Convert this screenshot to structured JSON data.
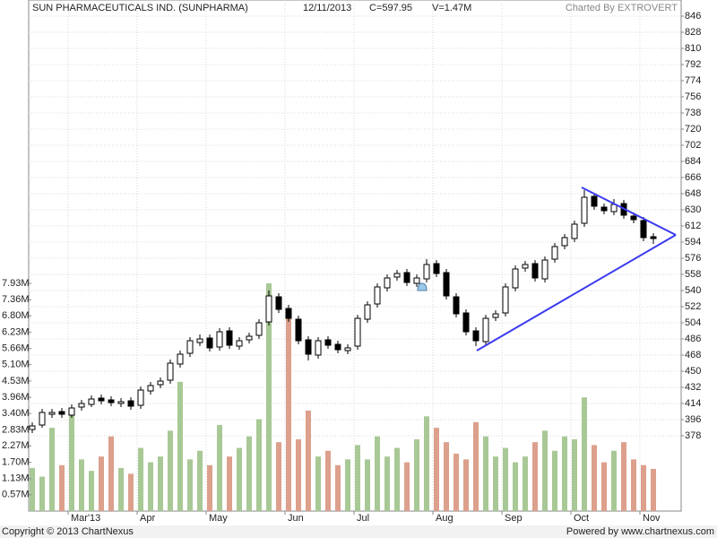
{
  "chart_data": {
    "type": "candlestick",
    "title": "SUN PHARMACEUTICALS IND. (SUNPHARMA)",
    "date": "12/11/2013",
    "close_label": "C=597.95",
    "volume_label": "V=1.47M",
    "credit": "Charted By EXTROVERT",
    "copyright": "Copyright © 2013 ChartNexus",
    "powered": "Powered by www.chartnexus.com",
    "categories": [
      null,
      null,
      null,
      null,
      "Mar'13",
      null,
      null,
      null,
      null,
      null,
      null,
      "Apr",
      null,
      null,
      null,
      null,
      null,
      null,
      "May",
      null,
      null,
      null,
      null,
      null,
      null,
      null,
      "Jun",
      null,
      null,
      null,
      null,
      null,
      null,
      "Jul",
      null,
      null,
      null,
      null,
      null,
      null,
      null,
      "Aug",
      null,
      null,
      null,
      null,
      null,
      null,
      "Sep",
      null,
      null,
      null,
      null,
      null,
      null,
      "Oct",
      null,
      null,
      null,
      null,
      null,
      null,
      "Nov",
      null
    ],
    "ohlc": [
      [
        385,
        393,
        381,
        389
      ],
      [
        390,
        408,
        387,
        404
      ],
      [
        402,
        408,
        398,
        404
      ],
      [
        405,
        409,
        398,
        402
      ],
      [
        401,
        413,
        398,
        409
      ],
      [
        410,
        418,
        406,
        414
      ],
      [
        413,
        423,
        410,
        419
      ],
      [
        420,
        424,
        413,
        417
      ],
      [
        418,
        422,
        411,
        415
      ],
      [
        414,
        420,
        410,
        416
      ],
      [
        417,
        421,
        407,
        411
      ],
      [
        412,
        433,
        408,
        429
      ],
      [
        428,
        438,
        424,
        434
      ],
      [
        435,
        443,
        431,
        439
      ],
      [
        440,
        463,
        436,
        459
      ],
      [
        458,
        473,
        454,
        469
      ],
      [
        470,
        488,
        466,
        484
      ],
      [
        482,
        491,
        478,
        486
      ],
      [
        487,
        491,
        472,
        476
      ],
      [
        477,
        498,
        473,
        494
      ],
      [
        495,
        499,
        475,
        479
      ],
      [
        478,
        488,
        474,
        484
      ],
      [
        485,
        493,
        481,
        489
      ],
      [
        490,
        508,
        486,
        504
      ],
      [
        505,
        540,
        501,
        534
      ],
      [
        533,
        537,
        515,
        519
      ],
      [
        520,
        524,
        505,
        509
      ],
      [
        508,
        512,
        480,
        484
      ],
      [
        485,
        489,
        462,
        469
      ],
      [
        468,
        488,
        464,
        484
      ],
      [
        485,
        489,
        475,
        479
      ],
      [
        480,
        484,
        470,
        474
      ],
      [
        473,
        480,
        469,
        476
      ],
      [
        478,
        513,
        474,
        509
      ],
      [
        508,
        528,
        504,
        524
      ],
      [
        525,
        548,
        521,
        544
      ],
      [
        543,
        558,
        539,
        554
      ],
      [
        555,
        563,
        551,
        559
      ],
      [
        560,
        564,
        545,
        549
      ],
      [
        548,
        558,
        544,
        554
      ],
      [
        553,
        575,
        549,
        569
      ],
      [
        570,
        574,
        555,
        559
      ],
      [
        560,
        564,
        530,
        534
      ],
      [
        533,
        537,
        510,
        514
      ],
      [
        515,
        519,
        490,
        494
      ],
      [
        495,
        499,
        478,
        484
      ],
      [
        483,
        513,
        479,
        509
      ],
      [
        510,
        518,
        506,
        514
      ],
      [
        515,
        548,
        511,
        544
      ],
      [
        543,
        568,
        539,
        564
      ],
      [
        565,
        573,
        561,
        569
      ],
      [
        570,
        574,
        550,
        554
      ],
      [
        553,
        578,
        549,
        574
      ],
      [
        575,
        593,
        571,
        589
      ],
      [
        590,
        603,
        586,
        599
      ],
      [
        598,
        618,
        594,
        614
      ],
      [
        615,
        652,
        611,
        644
      ],
      [
        645,
        649,
        630,
        634
      ],
      [
        633,
        637,
        625,
        629
      ],
      [
        628,
        642,
        624,
        636
      ],
      [
        637,
        641,
        620,
        624
      ],
      [
        623,
        627,
        615,
        619
      ],
      [
        618,
        622,
        595,
        599
      ],
      [
        600,
        604,
        592,
        597.95
      ]
    ],
    "volume": [
      1.5,
      1.2,
      2.9,
      1.6,
      3.6,
      1.8,
      1.4,
      1.9,
      2.6,
      1.5,
      1.3,
      2.2,
      1.7,
      1.9,
      2.8,
      4.5,
      1.8,
      2.1,
      1.6,
      3.0,
      1.9,
      2.2,
      2.6,
      3.2,
      7.93,
      2.4,
      6.8,
      2.5,
      3.5,
      1.9,
      2.1,
      1.6,
      1.8,
      2.3,
      1.8,
      2.6,
      1.9,
      2.2,
      1.7,
      2.5,
      3.3,
      2.9,
      2.4,
      2.0,
      1.8,
      3.1,
      2.6,
      1.9,
      2.2,
      1.7,
      1.9,
      2.4,
      2.8,
      2.1,
      2.6,
      2.5,
      3.96,
      2.3,
      1.7,
      2.1,
      2.4,
      1.8,
      1.6,
      1.47
    ],
    "up_color": "#a8c896",
    "down_color": "#dca08c",
    "ylim": [
      294,
      864
    ],
    "yticks": [
      846,
      828,
      810,
      792,
      774,
      756,
      738,
      720,
      702,
      684,
      666,
      648,
      630,
      612,
      594,
      576,
      558,
      540,
      522,
      504,
      486,
      468,
      450,
      432,
      414,
      396,
      378
    ],
    "vlim": [
      0,
      7.93
    ],
    "vticks": [
      {
        "value": 0.57,
        "label": "0.57M"
      },
      {
        "value": 1.13,
        "label": "1.13M"
      },
      {
        "value": 1.7,
        "label": "1.70M"
      },
      {
        "value": 2.27,
        "label": "2.27M"
      },
      {
        "value": 2.83,
        "label": "2.83M"
      },
      {
        "value": 3.4,
        "label": "3.40M"
      },
      {
        "value": 3.96,
        "label": "3.96M"
      },
      {
        "value": 4.53,
        "label": "4.53M"
      },
      {
        "value": 5.1,
        "label": "5.10M"
      },
      {
        "value": 5.66,
        "label": "5.66M"
      },
      {
        "value": 6.23,
        "label": "6.23M"
      },
      {
        "value": 6.8,
        "label": "6.80M"
      },
      {
        "value": 7.36,
        "label": "7.36M"
      },
      {
        "value": 7.93,
        "label": "7.93M"
      }
    ],
    "grid": true
  }
}
